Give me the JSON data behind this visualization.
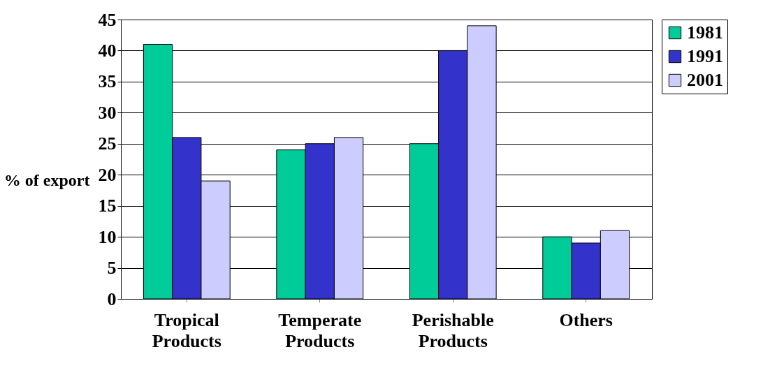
{
  "chart_data": {
    "type": "bar",
    "ylabel": "% of export",
    "categories": [
      "Tropical Products",
      "Temperate Products",
      "Perishable Products",
      "Others"
    ],
    "series": [
      {
        "name": "1981",
        "color": "#00cc99",
        "values": [
          41,
          24,
          25,
          10
        ]
      },
      {
        "name": "1991",
        "color": "#3333cc",
        "values": [
          26,
          25,
          40,
          9
        ]
      },
      {
        "name": "2001",
        "color": "#ccccff",
        "values": [
          19,
          26,
          44,
          11
        ]
      }
    ],
    "ylim": [
      0,
      45
    ],
    "yticks": [
      0,
      5,
      10,
      15,
      20,
      25,
      30,
      35,
      40,
      45
    ],
    "grid": "y",
    "legend": "right"
  }
}
